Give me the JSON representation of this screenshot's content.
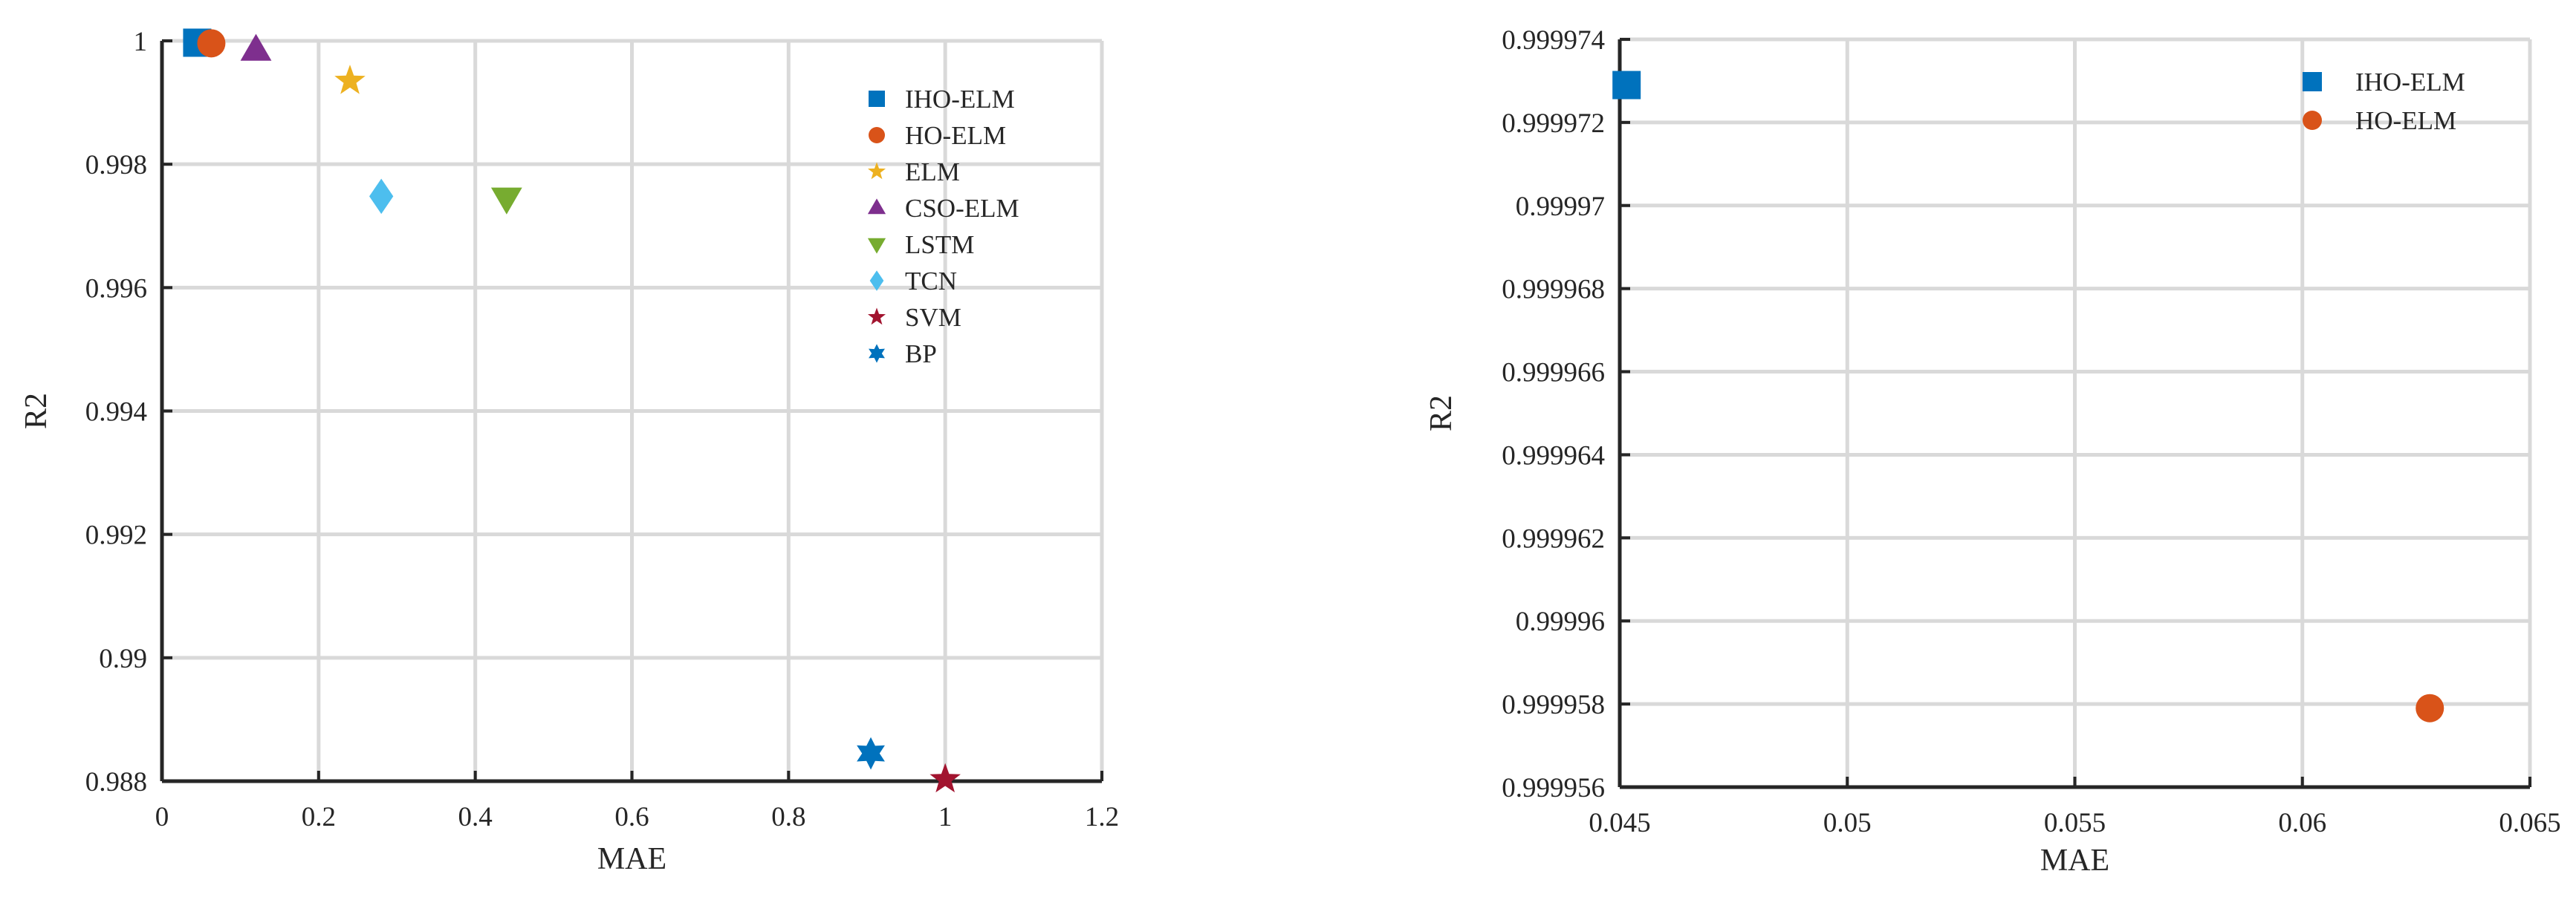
{
  "chart_data": [
    {
      "type": "scatter",
      "xlabel": "MAE",
      "ylabel": "R2",
      "xlim": [
        0,
        1.2
      ],
      "ylim": [
        0.988,
        1
      ],
      "xticks": [
        0,
        0.2,
        0.4,
        0.6,
        0.8,
        1,
        1.2
      ],
      "yticks": [
        0.988,
        0.99,
        0.992,
        0.994,
        0.996,
        0.998,
        1
      ],
      "xtick_labels": [
        "0",
        "0.2",
        "0.4",
        "0.6",
        "0.8",
        "1",
        "1.2"
      ],
      "ytick_labels": [
        "0.988",
        "0.99",
        "0.992",
        "0.994",
        "0.996",
        "0.998",
        "1"
      ],
      "grid": true,
      "legend_position": "top-right",
      "series": [
        {
          "name": "IHO-ELM",
          "x": [
            0.045
          ],
          "y": [
            0.99997
          ],
          "marker": "square",
          "color": "#0072BD"
        },
        {
          "name": "HO-ELM",
          "x": [
            0.063
          ],
          "y": [
            0.99996
          ],
          "marker": "circle",
          "color": "#D95319"
        },
        {
          "name": "ELM",
          "x": [
            0.24
          ],
          "y": [
            0.99935
          ],
          "marker": "star",
          "color": "#EDB120"
        },
        {
          "name": "CSO-ELM",
          "x": [
            0.12
          ],
          "y": [
            0.99985
          ],
          "marker": "triangle-up",
          "color": "#7E2F8E"
        },
        {
          "name": "LSTM",
          "x": [
            0.44
          ],
          "y": [
            0.99745
          ],
          "marker": "triangle-down",
          "color": "#77AC30"
        },
        {
          "name": "TCN",
          "x": [
            0.28
          ],
          "y": [
            0.99748
          ],
          "marker": "diamond",
          "color": "#4DBEEE"
        },
        {
          "name": "SVM",
          "x": [
            1.0
          ],
          "y": [
            0.98803
          ],
          "marker": "pentagram",
          "color": "#A2142F"
        },
        {
          "name": "BP",
          "x": [
            0.905
          ],
          "y": [
            0.98845
          ],
          "marker": "hexagram",
          "color": "#0072BD"
        }
      ]
    },
    {
      "type": "scatter",
      "xlabel": "MAE",
      "ylabel": "R2",
      "xlim": [
        0.045,
        0.065
      ],
      "ylim": [
        0.999956,
        0.999974
      ],
      "xticks": [
        0.045,
        0.05,
        0.055,
        0.06,
        0.065
      ],
      "yticks": [
        0.999956,
        0.999958,
        0.99996,
        0.999962,
        0.999964,
        0.999966,
        0.999968,
        0.99997,
        0.999972,
        0.999974
      ],
      "xtick_labels": [
        "0.045",
        "0.05",
        "0.055",
        "0.06",
        "0.065"
      ],
      "ytick_labels": [
        "0.999956",
        "0.999958",
        "0.99996",
        "0.999962",
        "0.999964",
        "0.999966",
        "0.999968",
        "0.99997",
        "0.999972",
        "0.999974"
      ],
      "grid": true,
      "legend_position": "top-right",
      "series": [
        {
          "name": "IHO-ELM",
          "x": [
            0.04515
          ],
          "y": [
            0.9999729
          ],
          "marker": "square",
          "color": "#0072BD"
        },
        {
          "name": "HO-ELM",
          "x": [
            0.0628
          ],
          "y": [
            0.9999579
          ],
          "marker": "circle",
          "color": "#D95319"
        }
      ]
    }
  ]
}
